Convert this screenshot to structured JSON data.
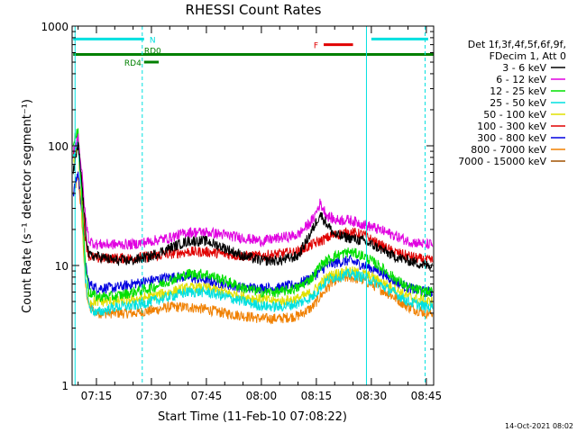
{
  "footer": {
    "date_stamp": "14-Oct-2021 08:02"
  },
  "chart_data": {
    "type": "line",
    "title": "RHESSI Count Rates",
    "xlabel": "Start Time (11-Feb-10 07:08:22)",
    "ylabel": "Count Rate (s⁻¹ detector segment⁻¹)",
    "yscale": "log",
    "ylim": [
      1,
      1000
    ],
    "xlim": [
      "07:08:22",
      "08:47:00"
    ],
    "x_ticks": [
      "07:15",
      "07:30",
      "07:45",
      "08:00",
      "08:15",
      "08:30",
      "08:45"
    ],
    "y_ticks": [
      "1",
      "10",
      "100",
      "1000"
    ],
    "legend_header": [
      "Det 1f,3f,4f,5f,6f,9f,",
      "FDecim 1, Att 0"
    ],
    "legend_position": "right",
    "series": [
      {
        "name": "3 - 6 keV",
        "color": "#000000",
        "x": [
          "07:08:40",
          "07:10",
          "07:11",
          "07:12",
          "07:13",
          "07:15",
          "07:20",
          "07:25",
          "07:30",
          "07:35",
          "07:40",
          "07:45",
          "07:50",
          "07:55",
          "08:00",
          "08:05",
          "08:10",
          "08:14",
          "08:16",
          "08:18",
          "08:20",
          "08:24",
          "08:28",
          "08:32",
          "08:36",
          "08:40",
          "08:45"
        ],
        "y": [
          60,
          100,
          50,
          20,
          12,
          12,
          11,
          11,
          12,
          14,
          16,
          16,
          14,
          12,
          11,
          11,
          12,
          20,
          27,
          22,
          18,
          17,
          16,
          14,
          12,
          11,
          10
        ]
      },
      {
        "name": "6 - 12 keV",
        "color": "#e000e0",
        "x": [
          "07:08:40",
          "07:10",
          "07:11",
          "07:12",
          "07:13",
          "07:15",
          "07:20",
          "07:25",
          "07:30",
          "07:35",
          "07:40",
          "07:45",
          "07:50",
          "07:55",
          "08:00",
          "08:05",
          "08:10",
          "08:14",
          "08:16",
          "08:18",
          "08:20",
          "08:24",
          "08:28",
          "08:32",
          "08:36",
          "08:40",
          "08:45"
        ],
        "y": [
          90,
          120,
          60,
          25,
          16,
          15,
          15,
          15,
          16,
          17,
          19,
          19,
          18,
          17,
          16,
          17,
          18,
          24,
          33,
          26,
          24,
          24,
          22,
          20,
          18,
          16,
          15
        ]
      },
      {
        "name": "12 - 25 keV",
        "color": "#00e000",
        "x": [
          "07:08:40",
          "07:10",
          "07:11",
          "07:12",
          "07:13",
          "07:15",
          "07:20",
          "07:25",
          "07:30",
          "07:35",
          "07:40",
          "07:45",
          "07:50",
          "07:55",
          "08:00",
          "08:05",
          "08:10",
          "08:14",
          "08:16",
          "08:18",
          "08:20",
          "08:24",
          "08:28",
          "08:32",
          "08:36",
          "08:40",
          "08:45"
        ],
        "y": [
          110,
          135,
          40,
          10,
          6,
          5.5,
          5.5,
          6,
          6.5,
          7.5,
          8.5,
          8.5,
          7.5,
          6.5,
          6,
          6,
          6.5,
          8,
          10,
          11,
          12,
          13,
          12,
          10,
          8,
          6.5,
          6
        ]
      },
      {
        "name": "25 - 50 keV",
        "color": "#00e0e0",
        "x": [
          "07:08:40",
          "07:10",
          "07:11",
          "07:12",
          "07:13",
          "07:15",
          "07:20",
          "07:25",
          "07:30",
          "07:35",
          "07:40",
          "07:45",
          "07:50",
          "07:55",
          "08:00",
          "08:05",
          "08:10",
          "08:14",
          "08:16",
          "08:18",
          "08:20",
          "08:24",
          "08:28",
          "08:32",
          "08:36",
          "08:40",
          "08:45"
        ],
        "y": [
          80,
          110,
          35,
          8,
          4.5,
          4,
          4.5,
          4.6,
          5,
          5.5,
          6,
          6,
          5.5,
          5,
          4.6,
          4.5,
          4.8,
          5.5,
          6.5,
          7.5,
          8,
          8.5,
          8,
          7,
          6,
          5,
          4.5
        ]
      },
      {
        "name": "50 - 100 keV",
        "color": "#e0e000",
        "x": [
          "07:08:40",
          "07:10",
          "07:11",
          "07:12",
          "07:13",
          "07:15",
          "07:20",
          "07:25",
          "07:30",
          "07:35",
          "07:40",
          "07:45",
          "07:50",
          "07:55",
          "08:00",
          "08:05",
          "08:10",
          "08:14",
          "08:16",
          "08:18",
          "08:20",
          "08:24",
          "08:28",
          "08:32",
          "08:36",
          "08:40",
          "08:45"
        ],
        "y": [
          75,
          100,
          30,
          7,
          5,
          5,
          5,
          5.2,
          5.5,
          6,
          6.5,
          6.5,
          6,
          5.5,
          5.2,
          5,
          5.3,
          6,
          7,
          8,
          8.5,
          9,
          8.5,
          7.5,
          6.5,
          5.5,
          5
        ]
      },
      {
        "name": "100 - 300 keV",
        "color": "#e00000",
        "x": [
          "07:08:40",
          "07:10",
          "07:11",
          "07:12",
          "07:13",
          "07:15",
          "07:20",
          "07:25",
          "07:30",
          "07:35",
          "07:40",
          "07:45",
          "07:50",
          "07:55",
          "08:00",
          "08:05",
          "08:10",
          "08:14",
          "08:16",
          "08:18",
          "08:20",
          "08:24",
          "08:28",
          "08:32",
          "08:36",
          "08:40",
          "08:45"
        ],
        "y": [
          85,
          110,
          50,
          16,
          12,
          11.5,
          11.5,
          11.5,
          12,
          12.5,
          13,
          13,
          12.5,
          12,
          12,
          12.5,
          13,
          15,
          16,
          17,
          18,
          19,
          18,
          15,
          13,
          12,
          11
        ]
      },
      {
        "name": "300 - 800 keV",
        "color": "#0000e0",
        "x": [
          "07:08:40",
          "07:10",
          "07:11",
          "07:12",
          "07:13",
          "07:15",
          "07:20",
          "07:25",
          "07:30",
          "07:35",
          "07:40",
          "07:45",
          "07:50",
          "07:55",
          "08:00",
          "08:05",
          "08:10",
          "08:14",
          "08:16",
          "08:18",
          "08:20",
          "08:24",
          "08:28",
          "08:32",
          "08:36",
          "08:40",
          "08:45"
        ],
        "y": [
          40,
          60,
          30,
          10,
          7,
          6.5,
          6.5,
          7,
          7.5,
          8,
          8,
          7.5,
          7,
          6.5,
          6.5,
          6.5,
          7,
          8,
          9,
          10,
          10.5,
          11,
          10,
          9,
          7.5,
          6.5,
          6
        ]
      },
      {
        "name": "800 - 7000 keV",
        "color": "#f08000",
        "x": [
          "07:08:40",
          "07:10",
          "07:11",
          "07:12",
          "07:13",
          "07:15",
          "07:20",
          "07:25",
          "07:30",
          "07:35",
          "07:40",
          "07:45",
          "07:50",
          "07:55",
          "08:00",
          "08:05",
          "08:10",
          "08:14",
          "08:16",
          "08:18",
          "08:20",
          "08:24",
          "08:28",
          "08:32",
          "08:36",
          "08:40",
          "08:45"
        ],
        "y": [
          40,
          55,
          25,
          7,
          4.5,
          4,
          4,
          4,
          4.2,
          4.5,
          4.5,
          4.3,
          4,
          3.8,
          3.6,
          3.6,
          3.8,
          4.5,
          5.5,
          6.5,
          7.5,
          8,
          7.5,
          6.5,
          5.5,
          4.5,
          4
        ]
      },
      {
        "name": "7000 - 15000 keV",
        "color": "#a05000",
        "x": [],
        "y": []
      }
    ],
    "annotations": [
      {
        "label": "N",
        "color": "#00e0e0",
        "y": 780,
        "segments": [
          [
            "07:08:40",
            "07:28:00"
          ],
          [
            "08:30:00",
            "08:45:30"
          ]
        ]
      },
      {
        "label": "RD0",
        "color": "#008000",
        "y": 580,
        "segments": [
          [
            "07:08:40",
            "08:47:00"
          ]
        ]
      },
      {
        "label": "RD4",
        "color": "#008000",
        "y": 500,
        "segments": [
          [
            "07:28:00",
            "07:32:00"
          ]
        ]
      },
      {
        "label": "F",
        "color": "#e00000",
        "y": 700,
        "segments": [
          [
            "08:17:00",
            "08:25:00"
          ]
        ]
      }
    ],
    "vertical_lines": [
      {
        "x": "07:09:10",
        "color": "#00e0e0",
        "style": "solid"
      },
      {
        "x": "07:27:30",
        "color": "#00e0e0",
        "style": "dashed"
      },
      {
        "x": "08:28:40",
        "color": "#00e0e0",
        "style": "solid"
      },
      {
        "x": "08:44:40",
        "color": "#00e0e0",
        "style": "dashed"
      }
    ]
  }
}
